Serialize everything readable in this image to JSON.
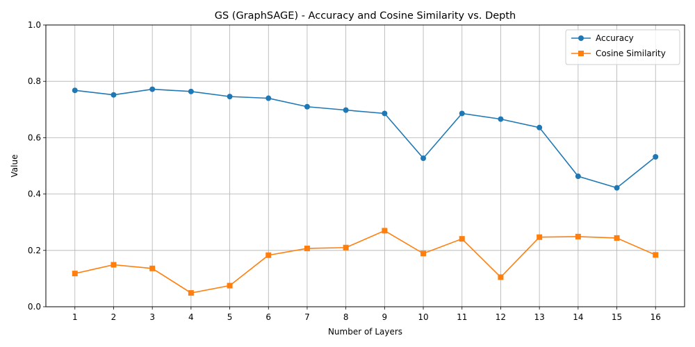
{
  "chart_data": {
    "type": "line",
    "title": "GS (GraphSAGE) - Accuracy and Cosine Similarity vs. Depth",
    "xlabel": "Number of Layers",
    "ylabel": "Value",
    "x": [
      1,
      2,
      3,
      4,
      5,
      6,
      7,
      8,
      9,
      10,
      11,
      12,
      13,
      14,
      15,
      16
    ],
    "xticks": [
      "1",
      "2",
      "3",
      "4",
      "5",
      "6",
      "7",
      "8",
      "9",
      "10",
      "11",
      "12",
      "13",
      "14",
      "15",
      "16"
    ],
    "yticks": [
      "0.0",
      "0.2",
      "0.4",
      "0.6",
      "0.8",
      "1.0"
    ],
    "ylim": [
      0,
      1
    ],
    "xlim": [
      0.25,
      16.75
    ],
    "grid": true,
    "legend_position": "top-right",
    "series": [
      {
        "name": "Accuracy",
        "color": "#1f77b4",
        "marker": "circle",
        "values": [
          0.768,
          0.752,
          0.772,
          0.764,
          0.746,
          0.74,
          0.71,
          0.698,
          0.686,
          0.527,
          0.686,
          0.666,
          0.636,
          0.463,
          0.422,
          0.532
        ]
      },
      {
        "name": "Cosine Similarity",
        "color": "#ff7f0e",
        "marker": "square",
        "values": [
          0.118,
          0.149,
          0.136,
          0.049,
          0.075,
          0.183,
          0.207,
          0.21,
          0.27,
          0.189,
          0.241,
          0.105,
          0.247,
          0.249,
          0.244,
          0.184
        ]
      }
    ]
  }
}
